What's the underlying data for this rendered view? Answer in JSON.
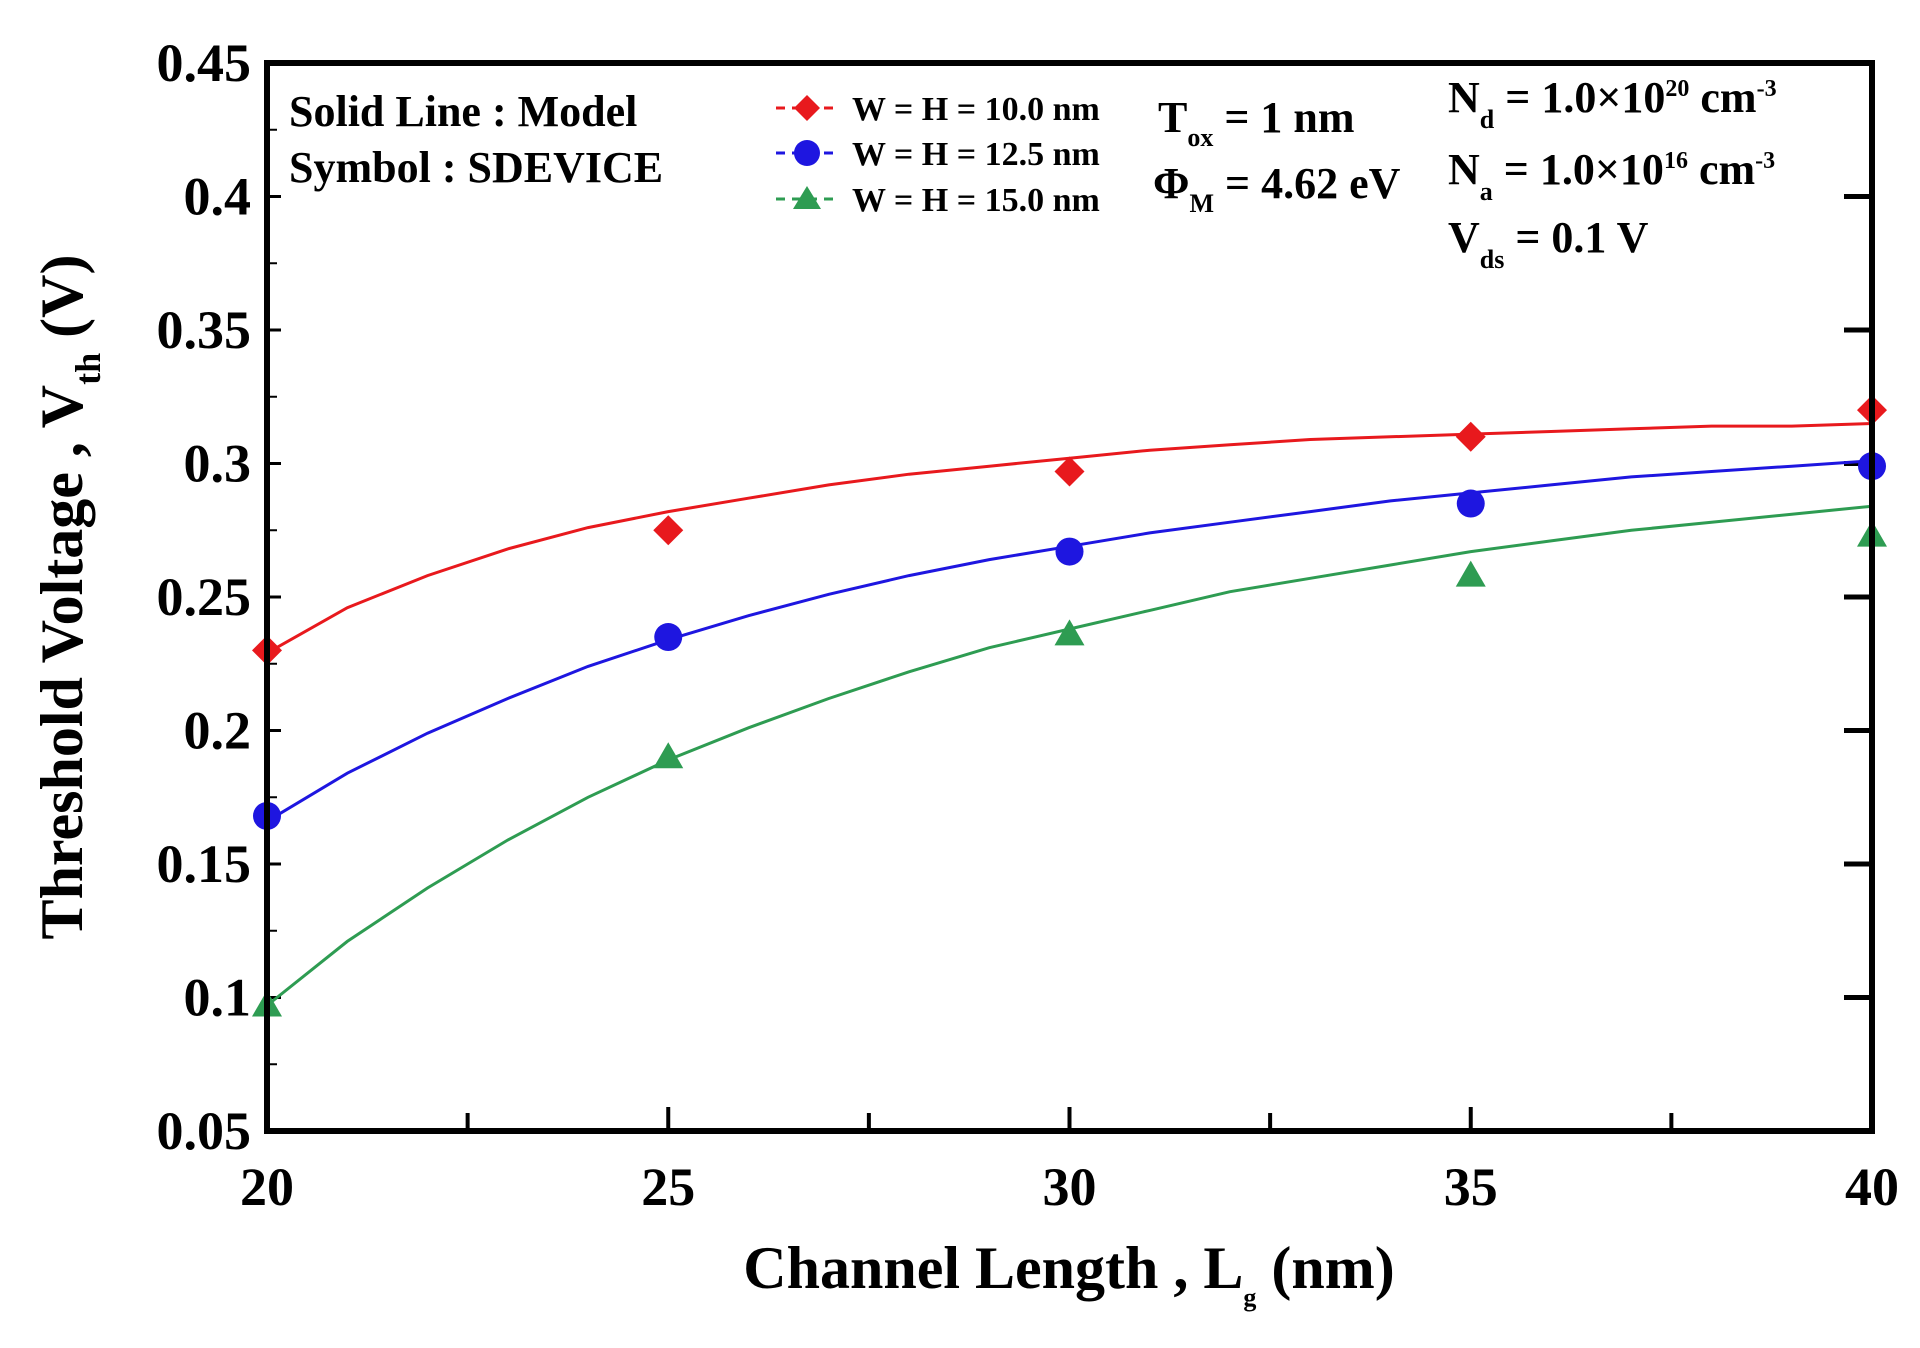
{
  "chart_data": {
    "type": "line",
    "xlabel": "Channel Length , L",
    "xlabel_sub": "g",
    "xlabel_unit": " (nm)",
    "ylabel": "Threshold Voltage  , V",
    "ylabel_sub": "th",
    "ylabel_unit": " (V)",
    "xlim": [
      20,
      40
    ],
    "ylim": [
      0.05,
      0.45
    ],
    "x_ticks": [
      20,
      25,
      30,
      35,
      40
    ],
    "x_tick_labels": [
      "20",
      "25",
      "30",
      "35",
      "40"
    ],
    "y_ticks": [
      0.05,
      0.1,
      0.15,
      0.2,
      0.25,
      0.3,
      0.35,
      0.4,
      0.45
    ],
    "y_tick_labels": [
      "0.05",
      "0.1",
      "0.15",
      "0.2",
      "0.25",
      "0.3",
      "0.35",
      "0.4",
      "0.45"
    ],
    "grid": false,
    "legend_position": "top-center",
    "series": [
      {
        "name": "W = H = 10.0 nm",
        "color": "#e8191d",
        "marker": "diamond",
        "model_x": [
          20,
          21,
          22,
          23,
          24,
          25,
          26,
          27,
          28,
          29,
          30,
          31,
          32,
          33,
          34,
          35,
          36,
          37,
          38,
          39,
          40
        ],
        "model_y": [
          0.229,
          0.246,
          0.258,
          0.268,
          0.276,
          0.282,
          0.287,
          0.292,
          0.296,
          0.299,
          0.302,
          0.305,
          0.307,
          0.309,
          0.31,
          0.311,
          0.312,
          0.313,
          0.314,
          0.314,
          0.315
        ],
        "sdevice_x": [
          20,
          25,
          30,
          35,
          40
        ],
        "sdevice_y": [
          0.23,
          0.275,
          0.297,
          0.31,
          0.32
        ]
      },
      {
        "name": "W = H = 12.5 nm",
        "color": "#1e16e0",
        "marker": "circle",
        "model_x": [
          20,
          21,
          22,
          23,
          24,
          25,
          26,
          27,
          28,
          29,
          30,
          31,
          32,
          33,
          34,
          35,
          36,
          37,
          38,
          39,
          40
        ],
        "model_y": [
          0.166,
          0.184,
          0.199,
          0.212,
          0.224,
          0.234,
          0.243,
          0.251,
          0.258,
          0.264,
          0.269,
          0.274,
          0.278,
          0.282,
          0.286,
          0.289,
          0.292,
          0.295,
          0.297,
          0.299,
          0.301
        ],
        "sdevice_x": [
          20,
          25,
          30,
          35,
          40
        ],
        "sdevice_y": [
          0.168,
          0.235,
          0.267,
          0.285,
          0.299
        ]
      },
      {
        "name": "W = H = 15.0 nm",
        "color": "#2e9c52",
        "marker": "triangle",
        "model_x": [
          20,
          21,
          22,
          23,
          24,
          25,
          26,
          27,
          28,
          29,
          30,
          31,
          32,
          33,
          34,
          35,
          36,
          37,
          38,
          39,
          40
        ],
        "model_y": [
          0.097,
          0.121,
          0.141,
          0.159,
          0.175,
          0.189,
          0.201,
          0.212,
          0.222,
          0.231,
          0.238,
          0.245,
          0.252,
          0.257,
          0.262,
          0.267,
          0.271,
          0.275,
          0.278,
          0.281,
          0.284
        ],
        "sdevice_x": [
          20,
          25,
          30,
          35,
          40
        ],
        "sdevice_y": [
          0.097,
          0.19,
          0.236,
          0.258,
          0.273
        ]
      }
    ]
  },
  "annotations": {
    "solid_line": "Solid Line : Model",
    "symbol": "Symbol : SDEVICE",
    "tox": {
      "main": "T",
      "sub": "ox",
      "rest": " = 1 nm"
    },
    "phim": {
      "main": "Φ",
      "sub": "M",
      "rest": " = 4.62 eV"
    },
    "nd": {
      "main": "N",
      "sub": "d",
      "rest": "  = 1.0×10",
      "sup": "20",
      "unit": " cm",
      "unit_sup": "-3"
    },
    "na": {
      "main": "N",
      "sub": "a",
      "rest": "  = 1.0×10",
      "sup": "16",
      "unit": " cm",
      "unit_sup": "-3"
    },
    "vds": {
      "main": "V",
      "sub": "ds",
      "rest": " =  0.1 V"
    }
  }
}
